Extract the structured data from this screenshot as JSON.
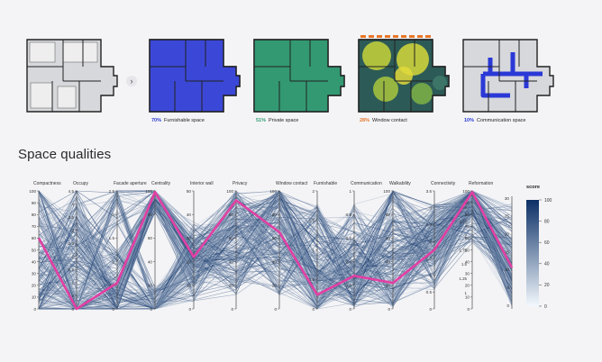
{
  "page": {
    "section_title": "Space qualities"
  },
  "plans": [
    {
      "id": "base",
      "caption_pct": "",
      "caption_label": "",
      "overlay": "none",
      "accent": "#9aa0a6"
    },
    {
      "id": "furnishable",
      "caption_pct": "70%",
      "caption_label": "Furnishable space",
      "overlay": "#2a39d6",
      "accent": "#2a39d6"
    },
    {
      "id": "private",
      "caption_pct": "51%",
      "caption_label": "Private space",
      "overlay": "#2e9e73",
      "accent": "#2e9e73"
    },
    {
      "id": "window",
      "caption_pct": "28%",
      "caption_label": "Window contact",
      "overlay": "heat",
      "accent": "#e8762b"
    },
    {
      "id": "communication",
      "caption_pct": "10%",
      "caption_label": "Communication space",
      "overlay": "path",
      "accent": "#2a39d6"
    }
  ],
  "nav": {
    "arrow": "›"
  },
  "chart_data": {
    "type": "parallel-coordinates",
    "axes": [
      {
        "name": "Compactness",
        "ticks": [
          "100",
          "90",
          "80",
          "70",
          "60",
          "50",
          "40",
          "30",
          "20",
          "10",
          "0"
        ]
      },
      {
        "name": "Occupy",
        "ticks": [
          "4.5",
          "4",
          "3.5",
          "3",
          "2.5",
          "2",
          "1.5",
          "1",
          "0.5",
          "0"
        ]
      },
      {
        "name": "Facade aperture",
        "ticks": [
          "2.5",
          "2",
          "1.5",
          "1",
          "0.5",
          "0"
        ]
      },
      {
        "name": "Centrality",
        "ticks": [
          "100",
          "80",
          "60",
          "40",
          "20",
          "0"
        ]
      },
      {
        "name": "Interior wall",
        "ticks": [
          "50",
          "40",
          "30",
          "20",
          "10",
          "0"
        ]
      },
      {
        "name": "Privacy",
        "ticks": [
          "100",
          "80",
          "60",
          "40",
          "20",
          "0"
        ]
      },
      {
        "name": "Window contact",
        "ticks": [
          "100",
          "80",
          "60",
          "40",
          "20",
          "0"
        ]
      },
      {
        "name": "Furnishable",
        "ticks": [
          "2",
          "1.5",
          "1",
          "0.5",
          "0"
        ]
      },
      {
        "name": "Communication",
        "ticks": [
          "1",
          "0.8",
          "0.6",
          "0.4",
          "0.2",
          "0"
        ]
      },
      {
        "name": "Walkability",
        "ticks": [
          "100",
          "80",
          "60",
          "40",
          "20",
          "0"
        ]
      },
      {
        "name": "Connectivity",
        "ticks": [
          "3.5",
          "3",
          "2.5",
          "2",
          "1.5",
          "1",
          "0.5",
          "0"
        ]
      },
      {
        "name": "Reformation",
        "ticks": [
          "100",
          "90",
          "80",
          "70",
          "60",
          "50",
          "40",
          "30",
          "20",
          "10",
          "0"
        ]
      }
    ],
    "right_ticks": [
      "30",
      "25",
      "20",
      "15",
      "10",
      "5",
      "0"
    ],
    "inner_ticks": [
      "2.5",
      "2.25",
      "2",
      "1.75",
      "1.5",
      "1.25",
      "1"
    ],
    "highlight": {
      "color": "#e23fa4",
      "values": [
        60,
        0,
        22,
        99,
        44,
        92,
        65,
        12,
        28,
        22,
        50,
        99,
        35
      ]
    },
    "colorbar": {
      "title": "score",
      "ticks": [
        100,
        80,
        60,
        40,
        20,
        0
      ],
      "color_low": "#f2f8fd",
      "color_high": "#0b2f66"
    },
    "line_count": 260
  }
}
